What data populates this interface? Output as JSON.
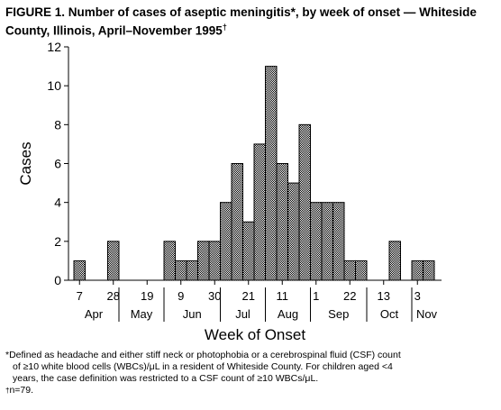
{
  "figure": {
    "title_line1": "FIGURE 1. Number of cases of aseptic meningitis*, by week of onset — Whiteside",
    "title_line2": "County, Illinois, April–November 1995",
    "title_mark": "†"
  },
  "chart_data": {
    "type": "bar",
    "title": "FIGURE 1. Number of cases of aseptic meningitis*, by week of onset — Whiteside County, Illinois, April–November 1995†",
    "xlabel": "Week of Onset",
    "ylabel": "Cases",
    "ylim": [
      0,
      12
    ],
    "yticks": [
      0,
      2,
      4,
      6,
      8,
      10,
      12
    ],
    "grid": false,
    "week_tick_labels": [
      "7",
      "28",
      "19",
      "9",
      "30",
      "21",
      "11",
      "1",
      "22",
      "13",
      "3"
    ],
    "month_labels": [
      "Apr",
      "May",
      "Jun",
      "Jul",
      "Aug",
      "Sep",
      "Oct",
      "Nov"
    ],
    "categories": [
      "Apr 7",
      "Apr 14",
      "Apr 21",
      "Apr 28",
      "May 5",
      "May 12",
      "May 19",
      "May 26",
      "Jun 2",
      "Jun 9",
      "Jun 16",
      "Jun 23",
      "Jun 30",
      "Jul 7",
      "Jul 14",
      "Jul 21",
      "Jul 28",
      "Aug 4",
      "Aug 11",
      "Aug 18",
      "Aug 25",
      "Sep 1",
      "Sep 8",
      "Sep 15",
      "Sep 22",
      "Sep 29",
      "Oct 6",
      "Oct 13",
      "Oct 20",
      "Oct 27",
      "Nov 3",
      "Nov 10"
    ],
    "values": [
      1,
      0,
      0,
      2,
      0,
      0,
      0,
      0,
      2,
      1,
      1,
      2,
      2,
      4,
      6,
      3,
      7,
      11,
      6,
      5,
      8,
      4,
      4,
      4,
      1,
      1,
      0,
      0,
      2,
      0,
      1,
      1
    ]
  },
  "footnotes": {
    "line1": "*Defined as headache and either stiff neck or photophobia or a cerebrospinal fluid (CSF) count",
    "line2": "of ≥10 white blood cells (WBCs)/μL in a resident of Whiteside County. For children aged <4",
    "line3": "years, the case definition was restricted to a CSF count of ≥10 WBCs/μL.",
    "dagger_mark": "†",
    "dagger_text": "n=79."
  }
}
